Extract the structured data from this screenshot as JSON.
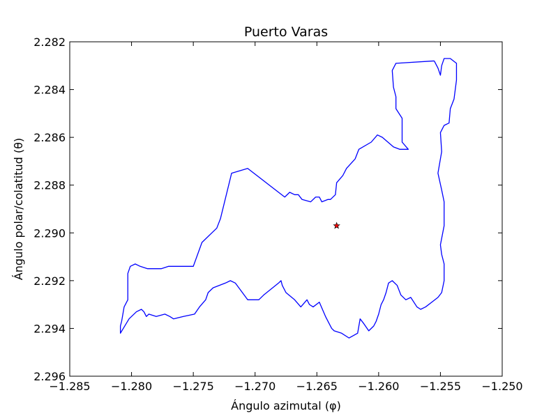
{
  "chart_data": {
    "type": "line",
    "title": "Puerto Varas",
    "xlabel": "Ángulo azimutal (φ)",
    "ylabel": "Ángulo polar/colatitud (θ)",
    "xlim": [
      -1.285,
      -1.25
    ],
    "ylim": [
      2.296,
      2.282
    ],
    "y_inverted": true,
    "grid": false,
    "xticks": [
      -1.285,
      -1.28,
      -1.275,
      -1.27,
      -1.265,
      -1.26,
      -1.255,
      -1.25
    ],
    "xtick_labels": [
      "−1.285",
      "−1.280",
      "−1.275",
      "−1.270",
      "−1.265",
      "−1.260",
      "−1.255",
      "−1.250"
    ],
    "yticks": [
      2.282,
      2.284,
      2.286,
      2.288,
      2.29,
      2.292,
      2.294,
      2.296
    ],
    "ytick_labels": [
      "2.282",
      "2.284",
      "2.286",
      "2.288",
      "2.290",
      "2.292",
      "2.294",
      "2.296"
    ],
    "series": [
      {
        "color": "#0000ff",
        "x": [
          -1.2555,
          -1.2586,
          -1.2589,
          -1.2588,
          -1.2586,
          -1.2586,
          -1.2581,
          -1.2581,
          -1.2576,
          -1.258,
          -1.2583,
          -1.2588,
          -1.2597,
          -1.2601,
          -1.2606,
          -1.2616,
          -1.2619,
          -1.2626,
          -1.2629,
          -1.2634,
          -1.2635,
          -1.2639,
          -1.2641,
          -1.2646,
          -1.2648,
          -1.2651,
          -1.2655,
          -1.2662,
          -1.2665,
          -1.2668,
          -1.2672,
          -1.2676,
          -1.2706,
          -1.2719,
          -1.2728,
          -1.2731,
          -1.2743,
          -1.275,
          -1.277,
          -1.2776,
          -1.2787,
          -1.2793,
          -1.2797,
          -1.2801,
          -1.2803,
          -1.2803,
          -1.2803,
          -1.2806,
          -1.2807,
          -1.2808,
          -1.2809,
          -1.2809,
          -1.2802,
          -1.2796,
          -1.2792,
          -1.279,
          -1.2788,
          -1.2786,
          -1.278,
          -1.2773,
          -1.2769,
          -1.2766,
          -1.2758,
          -1.2749,
          -1.2745,
          -1.274,
          -1.2738,
          -1.2734,
          -1.2724,
          -1.272,
          -1.2716,
          -1.2706,
          -1.2697,
          -1.2693,
          -1.2681,
          -1.2679,
          -1.2678,
          -1.2675,
          -1.2668,
          -1.2663,
          -1.2658,
          -1.2656,
          -1.2653,
          -1.2648,
          -1.2643,
          -1.2641,
          -1.2638,
          -1.2636,
          -1.263,
          -1.2624,
          -1.2617,
          -1.2615,
          -1.2612,
          -1.2608,
          -1.2604,
          -1.2602,
          -1.26,
          -1.2598,
          -1.2596,
          -1.2594,
          -1.2592,
          -1.2589,
          -1.2585,
          -1.2582,
          -1.2578,
          -1.2574,
          -1.2569,
          -1.2566,
          -1.2562,
          -1.2557,
          -1.2552,
          -1.2549,
          -1.2547,
          -1.2547,
          -1.2549,
          -1.255,
          -1.2547,
          -1.2547,
          -1.2547,
          -1.2549,
          -1.2552,
          -1.2549,
          -1.255,
          -1.2547,
          -1.2543,
          -1.2542,
          -1.2539,
          -1.2537,
          -1.2537,
          -1.2537,
          -1.2542,
          -1.2547,
          -1.2549,
          -1.255,
          -1.2552,
          -1.2555
        ],
        "y": [
          2.2828,
          2.2829,
          2.2832,
          2.2839,
          2.2843,
          2.2848,
          2.2852,
          2.2862,
          2.2865,
          2.2865,
          2.2865,
          2.2864,
          2.286,
          2.2859,
          2.2862,
          2.2865,
          2.2869,
          2.2873,
          2.2876,
          2.2879,
          2.2884,
          2.2886,
          2.2886,
          2.2887,
          2.2885,
          2.2885,
          2.2887,
          2.2886,
          2.2884,
          2.2884,
          2.2883,
          2.2885,
          2.2873,
          2.2875,
          2.2894,
          2.2898,
          2.2904,
          2.2914,
          2.2914,
          2.2915,
          2.2915,
          2.2914,
          2.2913,
          2.2914,
          2.2917,
          2.2918,
          2.2928,
          2.2931,
          2.2934,
          2.2937,
          2.2939,
          2.2942,
          2.2936,
          2.2933,
          2.2932,
          2.2933,
          2.2935,
          2.2934,
          2.2935,
          2.2934,
          2.2935,
          2.2936,
          2.2935,
          2.2934,
          2.2931,
          2.2928,
          2.2925,
          2.2923,
          2.2921,
          2.292,
          2.2921,
          2.2928,
          2.2928,
          2.2926,
          2.2921,
          2.292,
          2.2922,
          2.2925,
          2.2928,
          2.2931,
          2.2928,
          2.293,
          2.2931,
          2.2929,
          2.2935,
          2.2937,
          2.294,
          2.2941,
          2.2942,
          2.2944,
          2.2942,
          2.2936,
          2.2938,
          2.2941,
          2.2939,
          2.2937,
          2.2934,
          2.293,
          2.2928,
          2.2925,
          2.2921,
          2.292,
          2.2922,
          2.2926,
          2.2928,
          2.2927,
          2.2931,
          2.2932,
          2.2931,
          2.2929,
          2.2927,
          2.2925,
          2.292,
          2.2913,
          2.2909,
          2.2905,
          2.2897,
          2.2893,
          2.2887,
          2.2882,
          2.2875,
          2.2866,
          2.2858,
          2.2855,
          2.2854,
          2.2848,
          2.2844,
          2.2836,
          2.2832,
          2.2829,
          2.2827,
          2.2827,
          2.283,
          2.2834,
          2.2831,
          2.2828
        ]
      }
    ],
    "marker": {
      "x": -1.2634,
      "y": 2.2897,
      "symbol": "star",
      "color": "#ff0000"
    }
  }
}
